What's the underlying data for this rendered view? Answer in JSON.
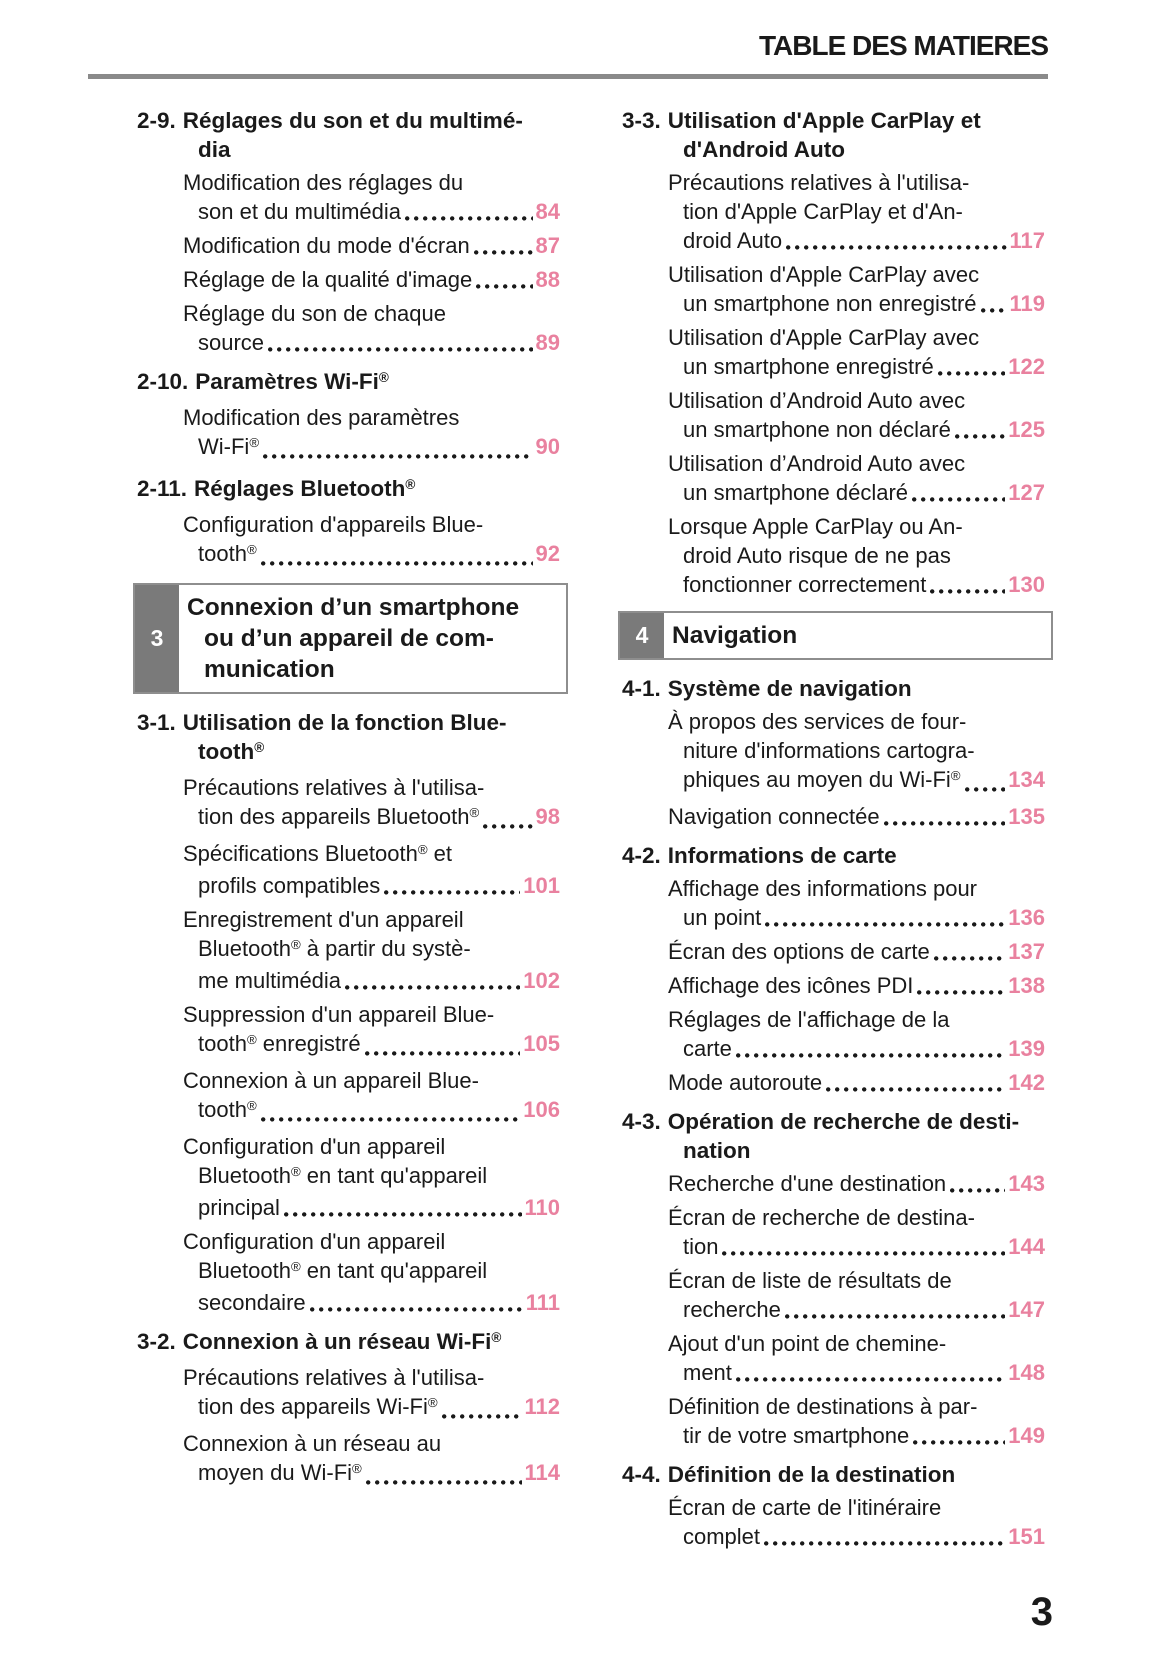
{
  "page": {
    "header_title": "TABLE DES MATIERES",
    "page_number": "3",
    "colors": {
      "accent_pink": "#e9819f",
      "chapter_tab_gray": "#7a7a7a",
      "rule_gray": "#8a8a8a"
    }
  },
  "columns": [
    {
      "blocks": [
        {
          "type": "section",
          "label": "2-9.",
          "title_lines": [
            "Réglages du son et du multimé-",
            "dia"
          ],
          "entries": [
            {
              "lines": [
                "Modification des réglages du",
                "son et du multimédia"
              ],
              "page": "84"
            },
            {
              "lines": [
                "Modification du mode d'écran"
              ],
              "page": "87"
            },
            {
              "lines": [
                "Réglage de la qualité d'image"
              ],
              "page": "88"
            },
            {
              "lines": [
                "Réglage du son de chaque",
                "source"
              ],
              "page": "89"
            }
          ]
        },
        {
          "type": "section",
          "label": "2-10.",
          "title_lines": [
            "Paramètres Wi-Fi®"
          ],
          "entries": [
            {
              "lines": [
                "Modification des paramètres",
                "Wi-Fi®"
              ],
              "page": "90"
            }
          ]
        },
        {
          "type": "section",
          "label": "2-11.",
          "title_lines": [
            "Réglages Bluetooth®"
          ],
          "entries": [
            {
              "lines": [
                "Configuration d'appareils Blue-",
                "tooth®"
              ],
              "page": "92"
            }
          ]
        },
        {
          "type": "chapter",
          "number": "3",
          "title_lines": [
            "Connexion d’un smartphone",
            "ou d’un appareil de com-",
            "munication"
          ]
        },
        {
          "type": "section",
          "label": "3-1.",
          "title_lines": [
            "Utilisation de la fonction Blue-",
            "tooth®"
          ],
          "entries": [
            {
              "lines": [
                "Précautions relatives à l'utilisa-",
                "tion des appareils Bluetooth®"
              ],
              "page": "98"
            },
            {
              "lines": [
                "Spécifications Bluetooth® et",
                "profils compatibles"
              ],
              "page": "101"
            },
            {
              "lines": [
                "Enregistrement d'un appareil",
                "Bluetooth® à partir du systè-",
                "me multimédia"
              ],
              "page": "102"
            },
            {
              "lines": [
                "Suppression d'un appareil Blue-",
                "tooth® enregistré"
              ],
              "page": "105"
            },
            {
              "lines": [
                "Connexion à un appareil Blue-",
                "tooth®"
              ],
              "page": "106"
            },
            {
              "lines": [
                "Configuration d'un appareil",
                "Bluetooth® en tant qu'appareil",
                "principal"
              ],
              "page": "110"
            },
            {
              "lines": [
                "Configuration d'un appareil",
                "Bluetooth® en tant qu'appareil",
                "secondaire"
              ],
              "page": "111"
            }
          ]
        },
        {
          "type": "section",
          "label": "3-2.",
          "title_lines": [
            "Connexion à un réseau Wi-Fi®"
          ],
          "entries": [
            {
              "lines": [
                "Précautions relatives à l'utilisa-",
                "tion des appareils Wi-Fi®"
              ],
              "page": "112"
            },
            {
              "lines": [
                "Connexion à un réseau au",
                "moyen du Wi-Fi®"
              ],
              "page": "114"
            }
          ]
        }
      ]
    },
    {
      "blocks": [
        {
          "type": "section",
          "label": "3-3.",
          "title_lines": [
            "Utilisation d'Apple CarPlay et",
            "d'Android Auto"
          ],
          "entries": [
            {
              "lines": [
                "Précautions relatives à l'utilisa-",
                "tion d'Apple CarPlay et d'An-",
                "droid Auto"
              ],
              "page": "117"
            },
            {
              "lines": [
                "Utilisation d'Apple CarPlay avec",
                "un smartphone non enregistré"
              ],
              "page": "119"
            },
            {
              "lines": [
                "Utilisation d'Apple CarPlay avec",
                "un smartphone enregistré"
              ],
              "page": "122"
            },
            {
              "lines": [
                "Utilisation d’Android Auto avec",
                "un smartphone non déclaré"
              ],
              "page": "125"
            },
            {
              "lines": [
                "Utilisation d’Android Auto avec",
                "un smartphone déclaré"
              ],
              "page": "127"
            },
            {
              "lines": [
                "Lorsque Apple CarPlay ou An-",
                "droid Auto risque de ne pas",
                "fonctionner correctement"
              ],
              "page": "130"
            }
          ]
        },
        {
          "type": "chapter",
          "number": "4",
          "title_lines": [
            "Navigation"
          ]
        },
        {
          "type": "section",
          "label": "4-1.",
          "title_lines": [
            "Système de navigation"
          ],
          "entries": [
            {
              "lines": [
                "À propos des services de four-",
                "niture d'informations cartogra-",
                "phiques au moyen du Wi-Fi®"
              ],
              "page": "134"
            },
            {
              "lines": [
                "Navigation connectée"
              ],
              "page": "135"
            }
          ]
        },
        {
          "type": "section",
          "label": "4-2.",
          "title_lines": [
            "Informations de carte"
          ],
          "entries": [
            {
              "lines": [
                "Affichage des informations pour",
                "un point"
              ],
              "page": "136"
            },
            {
              "lines": [
                "Écran des options de carte"
              ],
              "page": "137"
            },
            {
              "lines": [
                "Affichage des icônes PDI"
              ],
              "page": "138"
            },
            {
              "lines": [
                "Réglages de l'affichage de la",
                "carte"
              ],
              "page": "139"
            },
            {
              "lines": [
                "Mode autoroute"
              ],
              "page": "142"
            }
          ]
        },
        {
          "type": "section",
          "label": "4-3.",
          "title_lines": [
            "Opération de recherche de desti-",
            "nation"
          ],
          "entries": [
            {
              "lines": [
                "Recherche d'une destination"
              ],
              "page": "143"
            },
            {
              "lines": [
                "Écran de recherche de destina-",
                "tion"
              ],
              "page": "144"
            },
            {
              "lines": [
                "Écran de liste de résultats de",
                "recherche"
              ],
              "page": "147"
            },
            {
              "lines": [
                "Ajout d'un point de chemine-",
                "ment"
              ],
              "page": "148"
            },
            {
              "lines": [
                "Définition de destinations à par-",
                "tir de votre smartphone"
              ],
              "page": "149"
            }
          ]
        },
        {
          "type": "section",
          "label": "4-4.",
          "title_lines": [
            "Définition de la destination"
          ],
          "entries": [
            {
              "lines": [
                "Écran de carte de l'itinéraire",
                "complet"
              ],
              "page": "151"
            }
          ]
        }
      ]
    }
  ]
}
